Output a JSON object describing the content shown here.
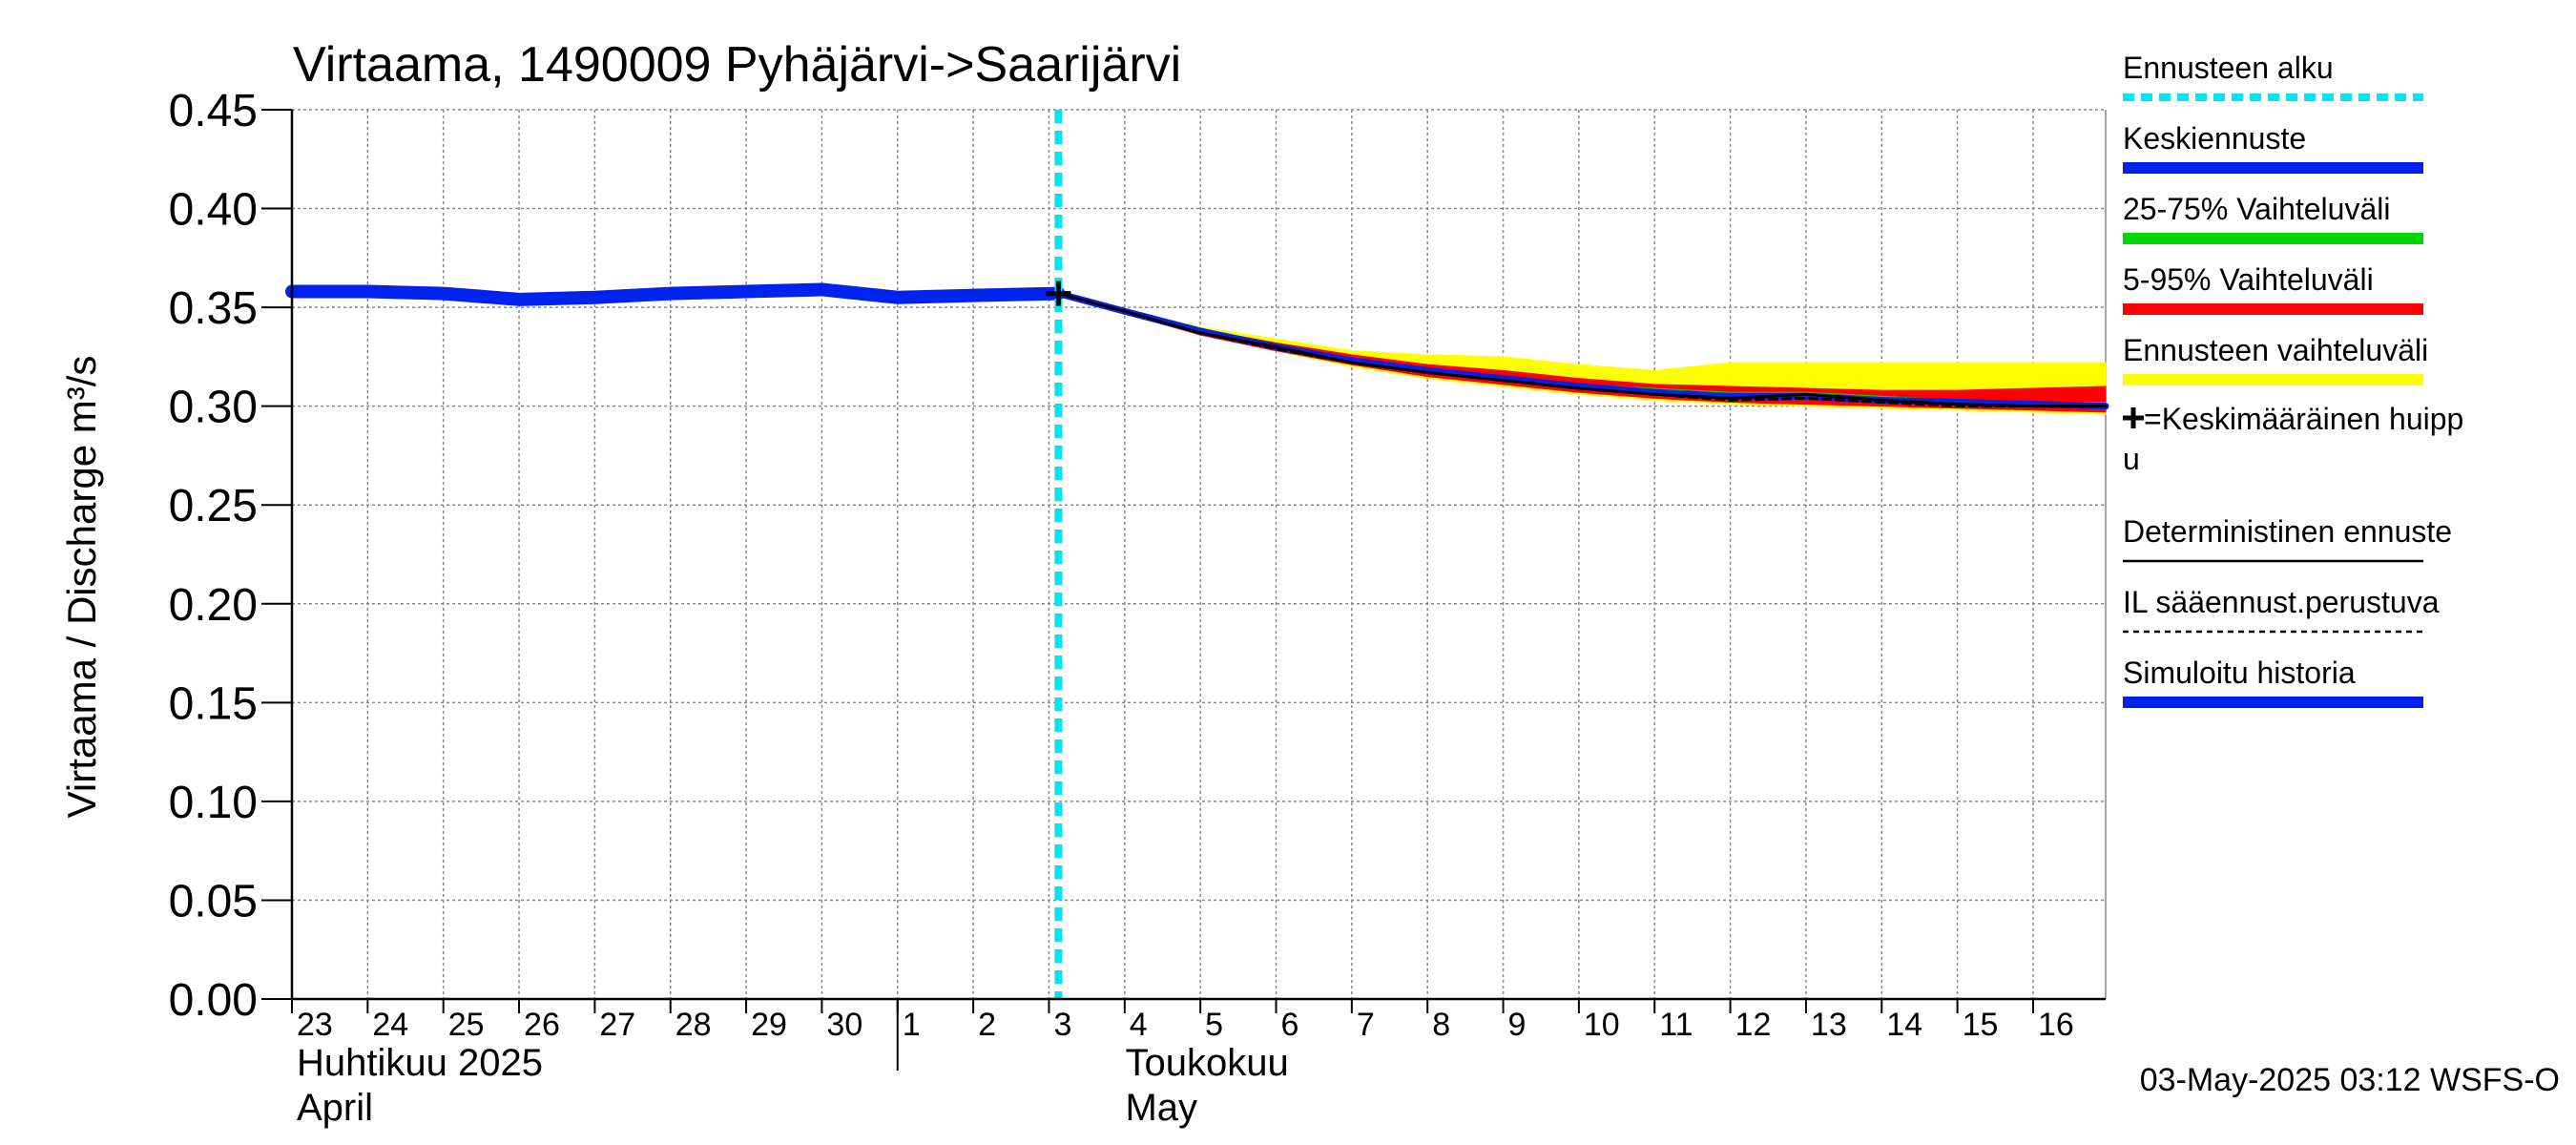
{
  "chart_data": {
    "type": "line",
    "title": "Virtaama, 1490009 Pyhäjärvi->Saarijärvi",
    "ylabel": "Virtaama / Discharge   m³/s",
    "ylim": [
      0,
      0.45
    ],
    "yticks": [
      "0.00",
      "0.05",
      "0.10",
      "0.15",
      "0.20",
      "0.25",
      "0.30",
      "0.35",
      "0.40",
      "0.45"
    ],
    "xlim": [
      "2025-04-23",
      "2025-05-16T23:00"
    ],
    "xtick_labels": [
      "23",
      "24",
      "25",
      "26",
      "27",
      "28",
      "29",
      "30",
      "1",
      "2",
      "3",
      "4",
      "5",
      "6",
      "7",
      "8",
      "9",
      "10",
      "11",
      "12",
      "13",
      "14",
      "15",
      "16"
    ],
    "month_labels": [
      {
        "line1": "Huhtikuu  2025",
        "line2": "April",
        "start": "2025-04-23"
      },
      {
        "line1": "Toukokuu",
        "line2": "May",
        "start": "2025-05-03"
      }
    ],
    "forecast_start": "2025-05-03T03:00",
    "peak_marker": {
      "x": "2025-05-03T03:00",
      "y": 0.357
    },
    "history": {
      "x": [
        "2025-04-23",
        "2025-04-24",
        "2025-04-25",
        "2025-04-26",
        "2025-04-27",
        "2025-04-28",
        "2025-04-29",
        "2025-04-30",
        "2025-05-01",
        "2025-05-02",
        "2025-05-03T03:00"
      ],
      "y": [
        0.358,
        0.358,
        0.357,
        0.354,
        0.355,
        0.357,
        0.358,
        0.359,
        0.355,
        0.356,
        0.357
      ]
    },
    "forecast_x": [
      "2025-05-03T03:00",
      "2025-05-04",
      "2025-05-05",
      "2025-05-06",
      "2025-05-07",
      "2025-05-08",
      "2025-05-09",
      "2025-05-10",
      "2025-05-11",
      "2025-05-12",
      "2025-05-13",
      "2025-05-14",
      "2025-05-15",
      "2025-05-16",
      "2025-05-16T23:00"
    ],
    "bands": {
      "range_total": {
        "upper": [
          0.357,
          0.349,
          0.34,
          0.334,
          0.328,
          0.326,
          0.325,
          0.321,
          0.318,
          0.322,
          0.322,
          0.322,
          0.322,
          0.322,
          0.322
        ],
        "lower": [
          0.357,
          0.347,
          0.336,
          0.328,
          0.32,
          0.314,
          0.31,
          0.306,
          0.303,
          0.301,
          0.3,
          0.299,
          0.298,
          0.297,
          0.296
        ]
      },
      "p5_95": {
        "upper": [
          0.357,
          0.349,
          0.339,
          0.332,
          0.326,
          0.321,
          0.318,
          0.314,
          0.311,
          0.31,
          0.309,
          0.308,
          0.308,
          0.309,
          0.31
        ],
        "lower": [
          0.357,
          0.347,
          0.336,
          0.328,
          0.321,
          0.315,
          0.311,
          0.307,
          0.304,
          0.302,
          0.301,
          0.3,
          0.299,
          0.298,
          0.297
        ]
      },
      "p25_75": {
        "upper": [
          0.357,
          0.348,
          0.338,
          0.331,
          0.324,
          0.319,
          0.315,
          0.311,
          0.309,
          0.307,
          0.307,
          0.305,
          0.303,
          0.302,
          0.302
        ],
        "lower": [
          0.357,
          0.347,
          0.337,
          0.329,
          0.322,
          0.317,
          0.313,
          0.309,
          0.306,
          0.304,
          0.304,
          0.302,
          0.301,
          0.3,
          0.299
        ]
      }
    },
    "mean_forecast": [
      0.357,
      0.348,
      0.338,
      0.33,
      0.323,
      0.318,
      0.314,
      0.31,
      0.307,
      0.305,
      0.305,
      0.303,
      0.302,
      0.301,
      0.3
    ],
    "deterministic": [
      0.357,
      0.348,
      0.337,
      0.33,
      0.322,
      0.317,
      0.313,
      0.309,
      0.306,
      0.304,
      0.306,
      0.303,
      0.301,
      0.3,
      0.3
    ],
    "il_forecast": [
      0.357,
      0.348,
      0.337,
      0.329,
      0.322,
      0.317,
      0.313,
      0.309,
      0.306,
      0.303,
      0.304,
      0.302,
      0.3,
      0.3,
      0.3
    ],
    "legend": {
      "position": "right",
      "items": [
        {
          "label": "Ennusteen alku",
          "color": "#00e5ee",
          "style": "dotted"
        },
        {
          "label": "Keskiennuste",
          "color": "#0022ee",
          "style": "solid"
        },
        {
          "label": "25-75% Vaihteluväli",
          "color": "#00d600",
          "style": "solid"
        },
        {
          "label": "5-95% Vaihteluväli",
          "color": "#ff0000",
          "style": "solid"
        },
        {
          "label": "Ennusteen vaihteluväli",
          "color": "#ffff00",
          "style": "solid"
        },
        {
          "label": "=Keskimääräinen huipp",
          "label2": "u",
          "color": "#000000",
          "style": "marker"
        },
        {
          "label": "Deterministinen ennuste",
          "color": "#000000",
          "style": "thin"
        },
        {
          "label": "IL sääennust.perustuva",
          "color": "#000000",
          "style": "dashed"
        },
        {
          "label": "Simuloitu historia",
          "color": "#0022ee",
          "style": "solid"
        }
      ]
    },
    "grid": true,
    "footer": "03-May-2025 03:12 WSFS-O"
  }
}
